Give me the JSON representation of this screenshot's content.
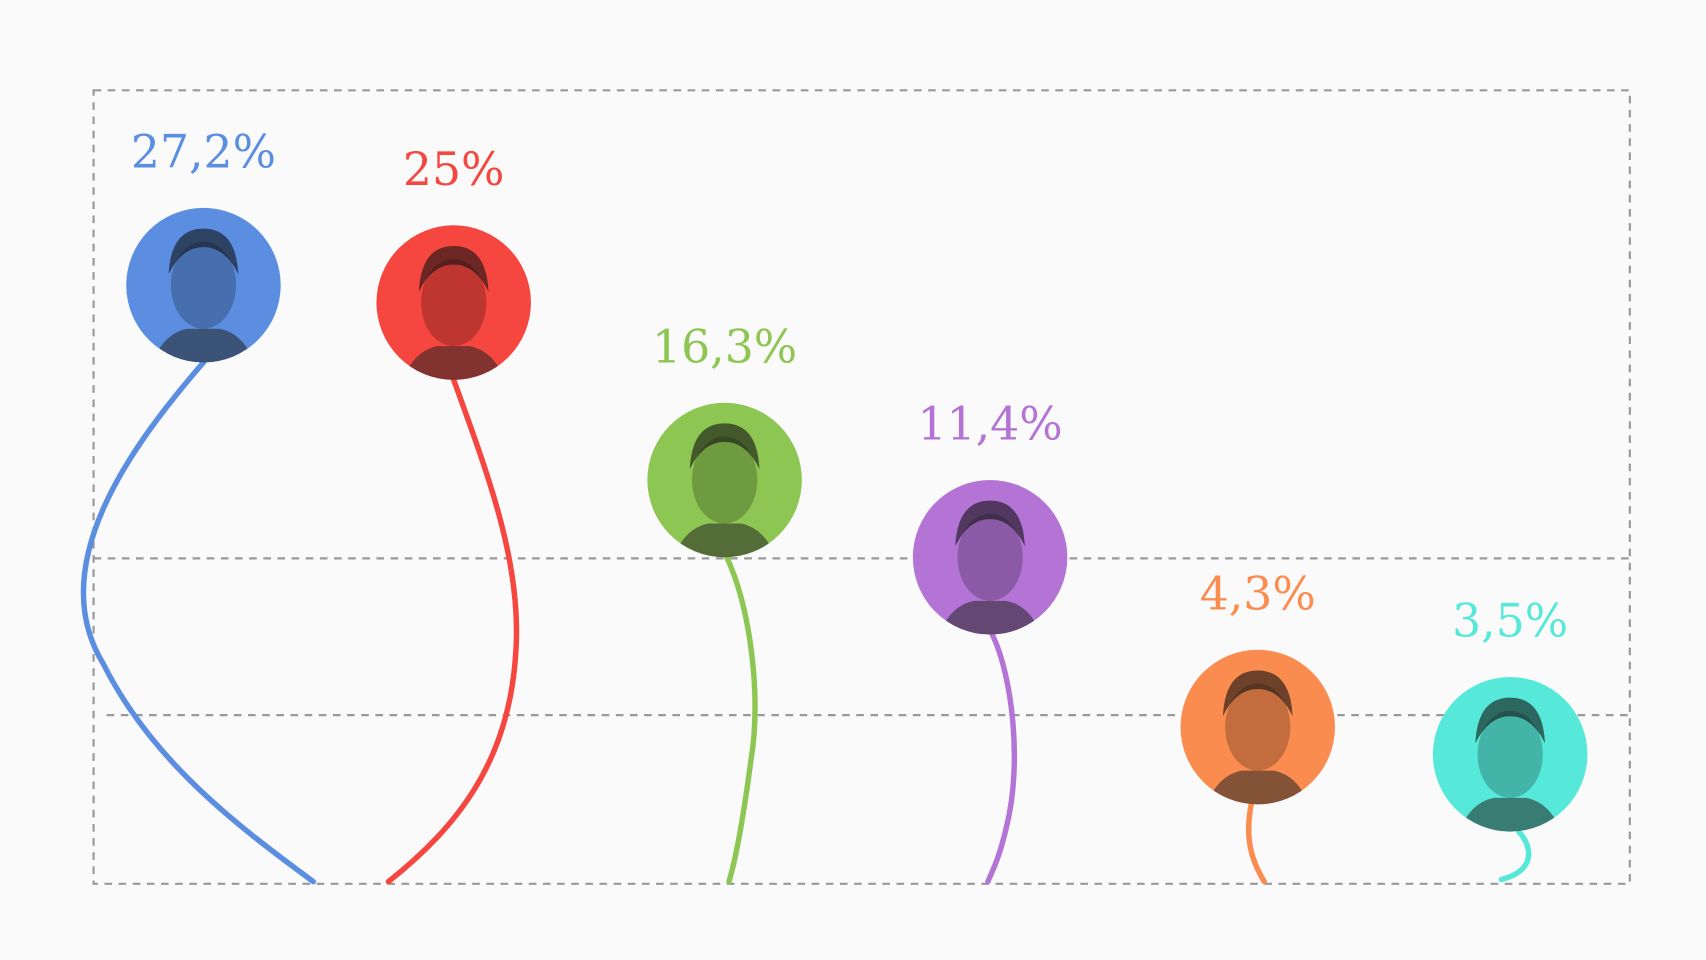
{
  "chart_data": {
    "type": "lollipop",
    "unit": "%",
    "values": [
      27.2,
      25,
      16.3,
      11.4,
      4.3,
      3.5
    ],
    "labels": [
      "27,2%",
      "25%",
      "16,3%",
      "11,4%",
      "4,3%",
      "3,5%"
    ],
    "colors": [
      "#5b8ee0",
      "#f5463f",
      "#8ec653",
      "#b374d6",
      "#fa8c50",
      "#56e8d8"
    ],
    "markers": "portrait-photo-circles",
    "grid": "dashed horizontal lines",
    "background": "#fafafa"
  }
}
